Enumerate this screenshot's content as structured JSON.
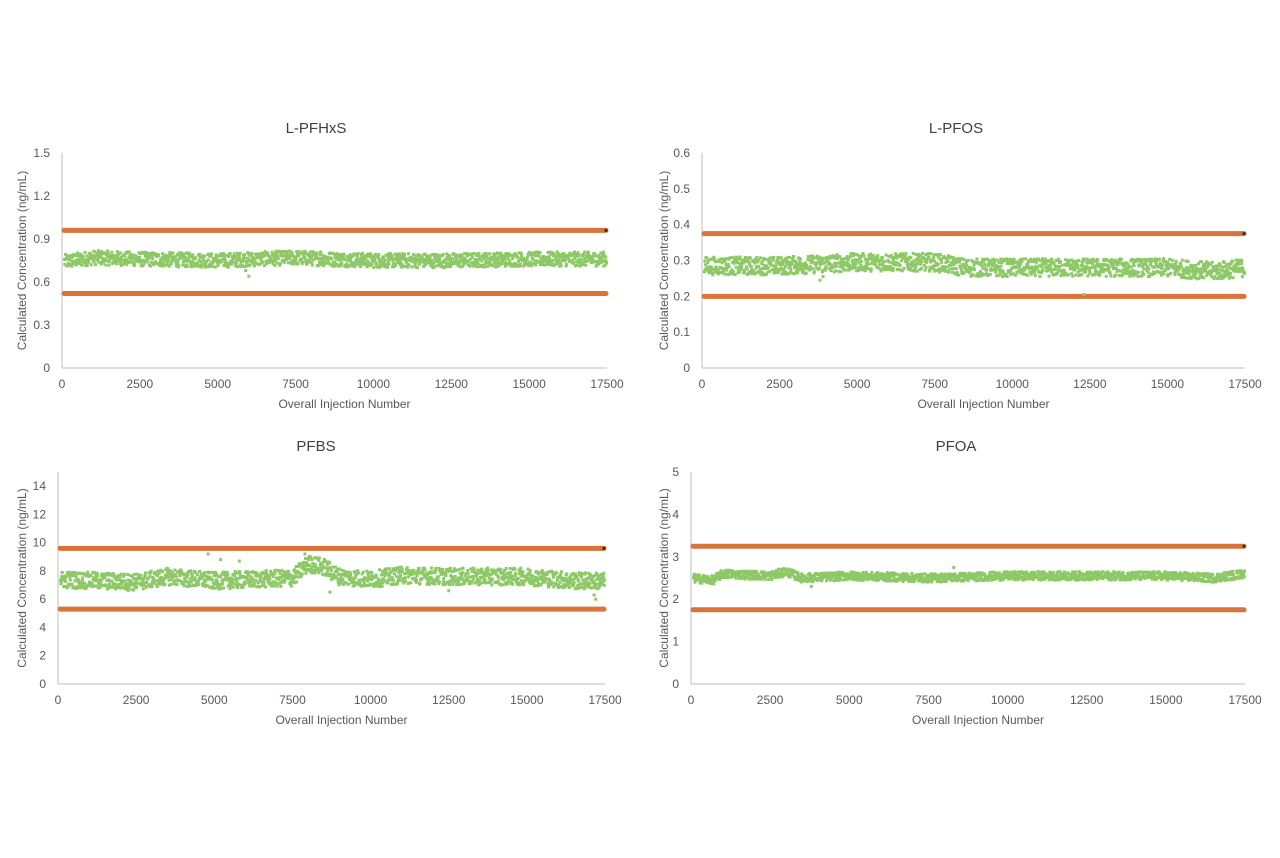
{
  "colors": {
    "band": "#D9733A",
    "points": "#8DC966",
    "axis": "#BFBFBF",
    "text": "#595959"
  },
  "chart_data": [
    {
      "type": "scatter",
      "title": "L-PFHxS",
      "xlabel": "Overall Injection Number",
      "ylabel": "Calculated Concentration (ng/mL)",
      "xlim": [
        0,
        17500
      ],
      "ylim": [
        0,
        1.5
      ],
      "xticks": [
        "0",
        "2500",
        "5000",
        "7500",
        "10000",
        "12500",
        "15000",
        "17500"
      ],
      "yticks": [
        "0",
        "0.3",
        "0.6",
        "0.9",
        "1.2",
        "1.5"
      ],
      "grid": false,
      "limit_lines": [
        0.96,
        0.52
      ],
      "trend": [
        [
          0,
          0.74
        ],
        [
          1000,
          0.77
        ],
        [
          2500,
          0.76
        ],
        [
          5000,
          0.75
        ],
        [
          7500,
          0.77
        ],
        [
          8500,
          0.76
        ],
        [
          10000,
          0.75
        ],
        [
          12500,
          0.75
        ],
        [
          15000,
          0.76
        ],
        [
          17500,
          0.76
        ]
      ],
      "spread": 0.05,
      "outliers": [
        [
          6000,
          0.64
        ],
        [
          5900,
          0.68
        ],
        [
          8300,
          0.81
        ]
      ]
    },
    {
      "type": "scatter",
      "title": "L-PFOS",
      "xlabel": "Overall Injection Number",
      "ylabel": "Calculated Concentration (ng/mL)",
      "xlim": [
        0,
        17500
      ],
      "ylim": [
        0,
        0.6
      ],
      "xticks": [
        "0",
        "2500",
        "5000",
        "7500",
        "10000",
        "12500",
        "15000",
        "17500"
      ],
      "yticks": [
        "0",
        "0.1",
        "0.2",
        "0.3",
        "0.4",
        "0.5",
        "0.6"
      ],
      "grid": false,
      "limit_lines": [
        0.375,
        0.2
      ],
      "trend": [
        [
          0,
          0.285
        ],
        [
          2500,
          0.285
        ],
        [
          5000,
          0.295
        ],
        [
          7500,
          0.295
        ],
        [
          8500,
          0.28
        ],
        [
          10000,
          0.28
        ],
        [
          12500,
          0.28
        ],
        [
          15000,
          0.28
        ],
        [
          16500,
          0.27
        ],
        [
          17500,
          0.28
        ]
      ],
      "spread": 0.025,
      "outliers": [
        [
          3800,
          0.245
        ],
        [
          3900,
          0.255
        ],
        [
          12300,
          0.205
        ]
      ]
    },
    {
      "type": "scatter",
      "title": "PFBS",
      "xlabel": "Overall Injection Number",
      "ylabel": "Calculated Concentration (ng/mL)",
      "xlim": [
        0,
        17500
      ],
      "ylim": [
        0,
        15
      ],
      "xticks": [
        "0",
        "2500",
        "5000",
        "7500",
        "10000",
        "12500",
        "15000",
        "17500"
      ],
      "yticks": [
        "0",
        "2",
        "4",
        "6",
        "8",
        "10",
        "12",
        "14"
      ],
      "grid": false,
      "limit_lines": [
        9.6,
        5.3
      ],
      "trend": [
        [
          0,
          7.4
        ],
        [
          2500,
          7.2
        ],
        [
          3500,
          7.6
        ],
        [
          5000,
          7.3
        ],
        [
          7500,
          7.5
        ],
        [
          8000,
          8.5
        ],
        [
          8500,
          8.3
        ],
        [
          9000,
          7.6
        ],
        [
          10000,
          7.4
        ],
        [
          11000,
          7.7
        ],
        [
          12500,
          7.6
        ],
        [
          15000,
          7.6
        ],
        [
          16500,
          7.3
        ],
        [
          17500,
          7.3
        ]
      ],
      "spread": 0.6,
      "outliers": [
        [
          4800,
          9.2
        ],
        [
          5200,
          8.8
        ],
        [
          5800,
          8.7
        ],
        [
          8700,
          6.5
        ],
        [
          12500,
          6.6
        ],
        [
          17200,
          6.0
        ],
        [
          17150,
          6.3
        ],
        [
          7900,
          9.2
        ]
      ]
    },
    {
      "type": "scatter",
      "title": "PFOA",
      "xlabel": "Overall Injection Number",
      "ylabel": "Calculated Concentration (ng/mL)",
      "xlim": [
        0,
        17500
      ],
      "ylim": [
        0,
        5
      ],
      "xticks": [
        "0",
        "2500",
        "5000",
        "7500",
        "10000",
        "12500",
        "15000",
        "17500"
      ],
      "yticks": [
        "0",
        "1",
        "2",
        "3",
        "4",
        "5"
      ],
      "grid": false,
      "limit_lines": [
        3.25,
        1.75
      ],
      "trend": [
        [
          0,
          2.5
        ],
        [
          700,
          2.45
        ],
        [
          1000,
          2.6
        ],
        [
          2500,
          2.55
        ],
        [
          3000,
          2.65
        ],
        [
          3500,
          2.5
        ],
        [
          5000,
          2.55
        ],
        [
          7500,
          2.5
        ],
        [
          10000,
          2.55
        ],
        [
          12500,
          2.55
        ],
        [
          15000,
          2.55
        ],
        [
          16500,
          2.5
        ],
        [
          17500,
          2.6
        ]
      ],
      "spread": 0.1,
      "outliers": [
        [
          3800,
          2.3
        ],
        [
          8300,
          2.75
        ]
      ]
    }
  ]
}
